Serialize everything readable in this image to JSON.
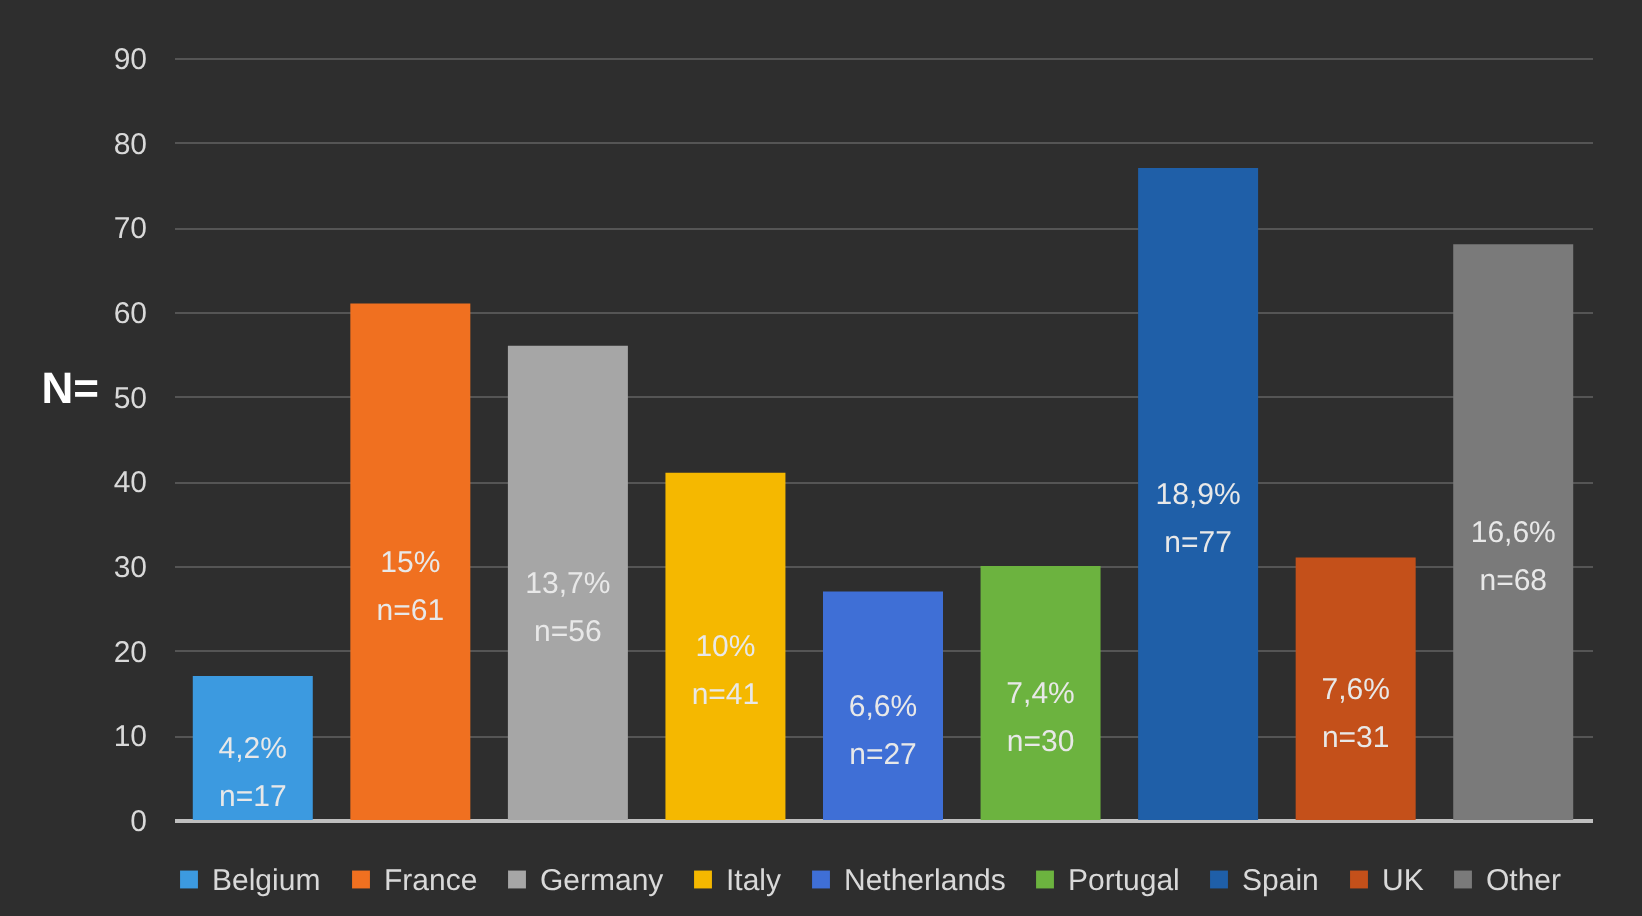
{
  "chart_data": {
    "type": "bar",
    "ylabel": "N=",
    "categories": [
      null,
      null,
      null,
      null,
      null,
      null,
      null,
      null,
      null
    ],
    "series": [
      {
        "name": "Belgium",
        "color": "#3c9ae0",
        "values": [
          17,
          null,
          null,
          null,
          null,
          null,
          null,
          null,
          null
        ],
        "value_labels": [
          "4,2%\nn=17",
          null,
          null,
          null,
          null,
          null,
          null,
          null,
          null
        ]
      },
      {
        "name": "France",
        "color": "#f07020",
        "values": [
          null,
          61,
          null,
          null,
          null,
          null,
          null,
          null,
          null
        ],
        "value_labels": [
          null,
          "15%\nn=61",
          null,
          null,
          null,
          null,
          null,
          null,
          null
        ]
      },
      {
        "name": "Germany",
        "color": "#a6a6a6",
        "values": [
          null,
          null,
          56,
          null,
          null,
          null,
          null,
          null,
          null
        ],
        "value_labels": [
          null,
          null,
          "13,7%\nn=56",
          null,
          null,
          null,
          null,
          null,
          null
        ]
      },
      {
        "name": "Italy",
        "color": "#f5b800",
        "values": [
          null,
          null,
          null,
          41,
          null,
          null,
          null,
          null,
          null
        ],
        "value_labels": [
          null,
          null,
          null,
          "10%\nn=41",
          null,
          null,
          null,
          null,
          null
        ]
      },
      {
        "name": "Netherlands",
        "color": "#3f6fd6",
        "values": [
          null,
          null,
          null,
          null,
          27,
          null,
          null,
          null,
          null
        ],
        "value_labels": [
          null,
          null,
          null,
          null,
          "6,6%\nn=27",
          null,
          null,
          null,
          null
        ]
      },
      {
        "name": "Portugal",
        "color": "#6cb33f",
        "values": [
          null,
          null,
          null,
          null,
          null,
          30,
          null,
          null,
          null
        ],
        "value_labels": [
          null,
          null,
          null,
          null,
          null,
          "7,4%\nn=30",
          null,
          null,
          null
        ]
      },
      {
        "name": "Spain",
        "color": "#1f5fa8",
        "values": [
          null,
          null,
          null,
          null,
          null,
          null,
          77,
          null,
          null
        ],
        "value_labels": [
          null,
          null,
          null,
          null,
          null,
          null,
          "18,9%\nn=77",
          null,
          null
        ]
      },
      {
        "name": "UK",
        "color": "#c4501a",
        "values": [
          null,
          null,
          null,
          null,
          null,
          null,
          null,
          31,
          null
        ],
        "value_labels": [
          null,
          null,
          null,
          null,
          null,
          null,
          null,
          "7,6%\nn=31",
          null
        ]
      },
      {
        "name": "Other",
        "color": "#7a7a7a",
        "values": [
          null,
          null,
          null,
          null,
          null,
          null,
          null,
          null,
          68
        ],
        "value_labels": [
          null,
          null,
          null,
          null,
          null,
          null,
          null,
          null,
          "16,6%\nn=68"
        ]
      }
    ],
    "ylim": [
      0,
      90
    ],
    "yticks": [
      0,
      10,
      20,
      30,
      40,
      50,
      60,
      70,
      80,
      90
    ],
    "grid": "y",
    "legend": "bottom",
    "tick_labels": "y"
  }
}
